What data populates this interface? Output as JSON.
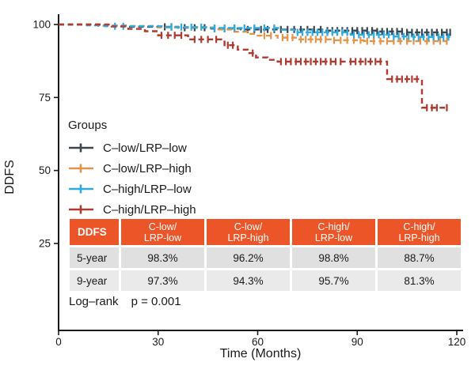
{
  "chart_data": {
    "type": "line",
    "subtype": "kaplan-meier-survival",
    "title": "",
    "xlabel": "Time (Months)",
    "ylabel": "DDFS",
    "xlim": [
      0,
      120
    ],
    "x_ticks": [
      0,
      30,
      60,
      90,
      120
    ],
    "y_ticks": [
      25,
      50,
      75,
      100
    ],
    "grid": false,
    "line_style": "dashed",
    "censor_marker": "plus",
    "legend": {
      "title": "Groups",
      "position": "inside-left"
    },
    "series": [
      {
        "name": "C–low/LRP–low",
        "color": "#3a4750",
        "steps": [
          [
            0,
            100
          ],
          [
            13,
            99.6
          ],
          [
            21,
            99.2
          ],
          [
            36,
            98.9
          ],
          [
            46,
            98.6
          ],
          [
            55,
            98.3
          ],
          [
            80,
            97.9
          ],
          [
            96,
            97.6
          ],
          [
            105,
            97.3
          ],
          [
            118,
            97.3
          ]
        ],
        "censors": [
          32,
          34,
          38,
          41,
          44,
          47,
          50,
          53,
          57,
          59,
          61,
          63,
          65,
          67,
          69,
          71,
          73,
          75,
          77,
          79,
          81,
          82.5,
          84,
          85.5,
          87,
          88.5,
          90,
          91.5,
          93,
          94.5,
          96,
          97.5,
          99,
          100.5,
          102,
          103.5,
          105,
          106.5,
          108,
          109.5,
          111,
          112.5,
          114,
          115.5,
          117,
          118
        ]
      },
      {
        "name": "C–low/LRP–high",
        "color": "#e2944a",
        "steps": [
          [
            0,
            100
          ],
          [
            12,
            99.5
          ],
          [
            30,
            99.0
          ],
          [
            47,
            98.3
          ],
          [
            53,
            97.5
          ],
          [
            57,
            96.8
          ],
          [
            60,
            96.2
          ],
          [
            66,
            95.5
          ],
          [
            72,
            94.9
          ],
          [
            82,
            94.6
          ],
          [
            92,
            94.3
          ],
          [
            117,
            94.3
          ]
        ],
        "censors": [
          62,
          64,
          67.5,
          69,
          70.5,
          73,
          74.5,
          76,
          77.5,
          79,
          80.5,
          83,
          85,
          87,
          89,
          91,
          93,
          95,
          97,
          99,
          101,
          103,
          105,
          107,
          109,
          111,
          113,
          115,
          117
        ]
      },
      {
        "name": "C–high/LRP–low",
        "color": "#2fabdf",
        "steps": [
          [
            0,
            100
          ],
          [
            8.5,
            99.7
          ],
          [
            14,
            99.4
          ],
          [
            32,
            99.1
          ],
          [
            45,
            98.8
          ],
          [
            67,
            98.2
          ],
          [
            71,
            97.3
          ],
          [
            88,
            96.5
          ],
          [
            101,
            95.9
          ],
          [
            107,
            95.7
          ],
          [
            118,
            95.7
          ]
        ],
        "censors": [
          17,
          19.5,
          34,
          37,
          40,
          43,
          47,
          50,
          53,
          56,
          59,
          62,
          65,
          72,
          73.5,
          75,
          76.5,
          78,
          79.5,
          81,
          82.5,
          84,
          85.5,
          87,
          89,
          90.5,
          92,
          93.5,
          95,
          96.5,
          98,
          99.5,
          101,
          102.5,
          104,
          105.5,
          107,
          108.5,
          110,
          111.5,
          113,
          114.5,
          116,
          117.5
        ]
      },
      {
        "name": "C–high/LRP–high",
        "color": "#ae3a30",
        "steps": [
          [
            0,
            100
          ],
          [
            16,
            99.3
          ],
          [
            21,
            98.5
          ],
          [
            26,
            97.7
          ],
          [
            30,
            96.3
          ],
          [
            39,
            94.9
          ],
          [
            50,
            92.9
          ],
          [
            54,
            91.4
          ],
          [
            57,
            90.2
          ],
          [
            59.5,
            88.7
          ],
          [
            63,
            87.9
          ],
          [
            66,
            87.3
          ],
          [
            99,
            81.3
          ],
          [
            109.5,
            71.5
          ],
          [
            117,
            71.5
          ]
        ],
        "censors": [
          31,
          33,
          35,
          37,
          41,
          43,
          45,
          47.5,
          51,
          52.5,
          58.5,
          67,
          68.5,
          70,
          71.5,
          73,
          74.5,
          76,
          77.5,
          79,
          80.5,
          82,
          83.5,
          85,
          88,
          89.5,
          91,
          92.5,
          94,
          95.5,
          97,
          100.5,
          102,
          103.5,
          105,
          106.5,
          108,
          111,
          112.5,
          114,
          117
        ]
      }
    ],
    "annotations": {
      "logrank_label": "Log–rank",
      "p_label": "p = 0.001"
    },
    "summary_table": {
      "corner_label": "DDFS",
      "header_bg": "#eb5527",
      "row_bgs": [
        "#e0e0e0",
        "#eaeaea"
      ],
      "columns": [
        {
          "line1": "C-low/",
          "line2": "LRP-low"
        },
        {
          "line1": "C-low/",
          "line2": "LRP-high"
        },
        {
          "line1": "C-high/",
          "line2": "LRP-low"
        },
        {
          "line1": "C-high/",
          "line2": "LRP-high"
        }
      ],
      "rows": [
        {
          "label": "5-year",
          "values": [
            "98.3%",
            "96.2%",
            "98.8%",
            "88.7%"
          ]
        },
        {
          "label": "9-year",
          "values": [
            "97.3%",
            "94.3%",
            "95.7%",
            "81.3%"
          ]
        }
      ]
    }
  }
}
